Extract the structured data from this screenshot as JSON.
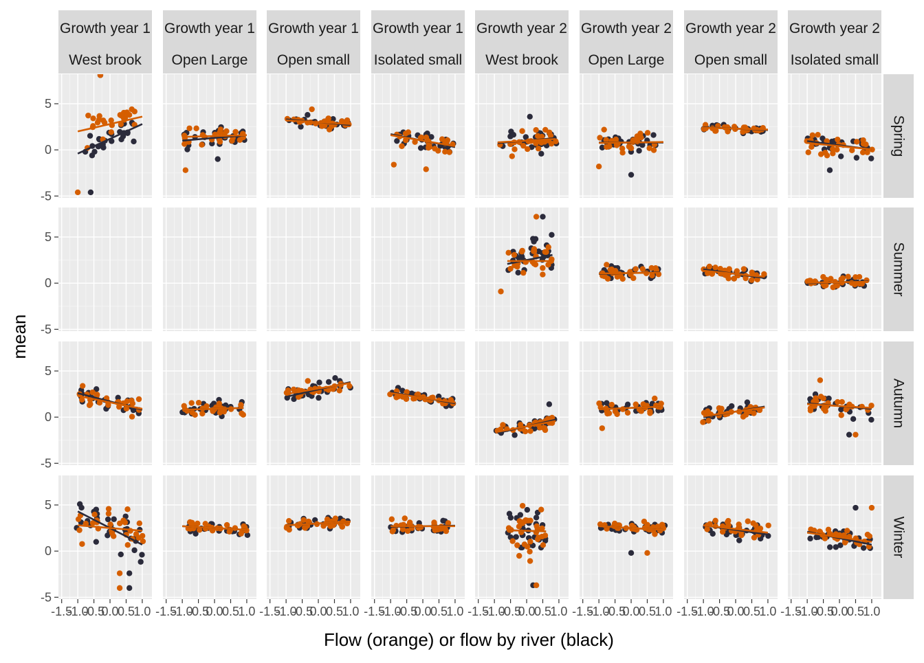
{
  "chart_data": {
    "type": "scatter",
    "xlabel": "Flow (orange) or flow by river (black)",
    "ylabel": "mean",
    "xlim": [
      -1.6,
      1.3
    ],
    "ylim": [
      -5.2,
      8.2
    ],
    "x_ticks": [
      -1.5,
      -1.0,
      -0.5,
      0.0,
      0.5,
      1.0
    ],
    "x_tick_labels": [
      "-1.5",
      "-1.0",
      "-0.5",
      "0.0",
      "0.5",
      "1.0"
    ],
    "y_ticks": [
      -5,
      0,
      5
    ],
    "y_tick_labels": [
      "-5",
      "0",
      "5"
    ],
    "grid": true,
    "facet_columns": [
      {
        "growth_year": "Growth year 1",
        "site": "West brook"
      },
      {
        "growth_year": "Growth year 1",
        "site": "Open Large"
      },
      {
        "growth_year": "Growth year 1",
        "site": "Open small"
      },
      {
        "growth_year": "Growth year 1",
        "site": "Isolated small"
      },
      {
        "growth_year": "Growth year 2",
        "site": "West brook"
      },
      {
        "growth_year": "Growth year 2",
        "site": "Open Large"
      },
      {
        "growth_year": "Growth year 2",
        "site": "Open small"
      },
      {
        "growth_year": "Growth year 2",
        "site": "Isolated small"
      }
    ],
    "facet_rows": [
      "Spring",
      "Summer",
      "Autumn",
      "Winter"
    ],
    "colors": {
      "flow": "#d55e00",
      "flow_by_river": "#2b2b3b"
    },
    "panels": [
      [
        {
          "c": [
            2.8,
            0.8
          ],
          "s": [
            1.2,
            1.6
          ],
          "xr": [
            -1.0,
            1.0
          ],
          "sd": 1.7,
          "n": 26,
          "ex": [
            [
              -0.6,
              -4.6,
              "b"
            ],
            [
              -1.0,
              -4.6,
              "o"
            ],
            [
              -0.3,
              8.1,
              "b"
            ],
            [
              -0.3,
              8.1,
              "o"
            ]
          ]
        },
        {
          "c": [
            1.5,
            0.1
          ],
          "s": [
            1.3,
            0.3
          ],
          "xr": [
            -1.0,
            1.0
          ],
          "sd": 0.9,
          "n": 26,
          "ex": [
            [
              -0.9,
              -2.2,
              "o"
            ],
            [
              0.1,
              -1.0,
              "b"
            ]
          ]
        },
        {
          "c": [
            3.0,
            -0.2
          ],
          "s": [
            3.0,
            -0.3
          ],
          "xr": [
            -1.0,
            1.0
          ],
          "sd": 0.6,
          "n": 26,
          "ex": [
            [
              -0.2,
              4.4,
              "o"
            ]
          ]
        },
        {
          "c": [
            1.0,
            -0.6
          ],
          "s": [
            1.0,
            -0.7
          ],
          "xr": [
            -1.0,
            1.0
          ],
          "sd": 0.8,
          "n": 26,
          "ex": [
            [
              -0.9,
              -1.6,
              "o"
            ],
            [
              0.1,
              -2.1,
              "o"
            ]
          ]
        },
        {
          "c": [
            1.0,
            0.2
          ],
          "s": [
            1.0,
            0.3
          ],
          "xr": [
            -0.9,
            0.9
          ],
          "sd": 1.0,
          "n": 26,
          "ex": [
            [
              0.1,
              3.6,
              "b"
            ]
          ]
        },
        {
          "c": [
            0.8,
            0.05
          ],
          "s": [
            0.8,
            0.0
          ],
          "xr": [
            -1.0,
            1.0
          ],
          "sd": 1.0,
          "n": 26,
          "ex": [
            [
              0.0,
              -2.7,
              "b"
            ],
            [
              -1.0,
              -1.8,
              "o"
            ]
          ]
        },
        {
          "c": [
            2.3,
            -0.1
          ],
          "s": [
            2.3,
            -0.15
          ],
          "xr": [
            -1.0,
            1.0
          ],
          "sd": 0.4,
          "n": 26,
          "ex": []
        },
        {
          "c": [
            0.4,
            -0.35
          ],
          "s": [
            0.5,
            -0.45
          ],
          "xr": [
            -1.0,
            1.0
          ],
          "sd": 1.0,
          "n": 26,
          "ex": [
            [
              -0.3,
              -2.2,
              "b"
            ]
          ]
        }
      ],
      [
        null,
        null,
        null,
        null,
        {
          "c": [
            2.4,
            0.0
          ],
          "s": [
            2.5,
            0.7
          ],
          "xr": [
            -0.6,
            0.8
          ],
          "sd": 1.9,
          "n": 28,
          "ex": [
            [
              0.3,
              7.2,
              "o"
            ],
            [
              0.5,
              7.2,
              "b"
            ],
            [
              -0.8,
              -0.9,
              "o"
            ]
          ]
        },
        {
          "c": [
            1.1,
            0.05
          ],
          "s": [
            1.1,
            0.1
          ],
          "xr": [
            -1.0,
            0.9
          ],
          "sd": 0.7,
          "n": 26,
          "ex": []
        },
        {
          "c": [
            1.0,
            -0.35
          ],
          "s": [
            1.0,
            -0.5
          ],
          "xr": [
            -1.0,
            0.9
          ],
          "sd": 0.6,
          "n": 26,
          "ex": []
        },
        {
          "c": [
            0.1,
            0.05
          ],
          "s": [
            0.1,
            0.1
          ],
          "xr": [
            -1.0,
            0.9
          ],
          "sd": 0.5,
          "n": 26,
          "ex": []
        }
      ],
      [
        {
          "c": [
            1.6,
            -0.7
          ],
          "s": [
            1.7,
            -0.9
          ],
          "xr": [
            -1.0,
            1.0
          ],
          "sd": 0.9,
          "n": 26,
          "ex": []
        },
        {
          "c": [
            0.9,
            0.1
          ],
          "s": [
            0.9,
            0.1
          ],
          "xr": [
            -1.0,
            0.9
          ],
          "sd": 0.6,
          "n": 24,
          "ex": []
        },
        {
          "c": [
            3.1,
            0.6
          ],
          "s": [
            3.0,
            0.8
          ],
          "xr": [
            -1.0,
            1.0
          ],
          "sd": 0.7,
          "n": 26,
          "ex": []
        },
        {
          "c": [
            2.1,
            -0.5
          ],
          "s": [
            2.1,
            -0.6
          ],
          "xr": [
            -1.0,
            1.0
          ],
          "sd": 0.5,
          "n": 26,
          "ex": []
        },
        {
          "c": [
            -1.0,
            0.65
          ],
          "s": [
            -1.0,
            0.8
          ],
          "xr": [
            -0.9,
            0.9
          ],
          "sd": 0.7,
          "n": 26,
          "ex": [
            [
              0.7,
              1.4,
              "b"
            ]
          ]
        },
        {
          "c": [
            1.0,
            0.15
          ],
          "s": [
            1.0,
            0.15
          ],
          "xr": [
            -1.0,
            0.9
          ],
          "sd": 0.7,
          "n": 24,
          "ex": [
            [
              -0.9,
              -1.2,
              "o"
            ]
          ]
        },
        {
          "c": [
            0.6,
            0.5
          ],
          "s": [
            0.6,
            0.6
          ],
          "xr": [
            -1.0,
            0.9
          ],
          "sd": 0.8,
          "n": 24,
          "ex": []
        },
        {
          "c": [
            1.2,
            -0.2
          ],
          "s": [
            1.2,
            -0.3
          ],
          "xr": [
            -1.0,
            1.0
          ],
          "sd": 1.0,
          "n": 24,
          "ex": [
            [
              -0.6,
              4.0,
              "o"
            ],
            [
              0.3,
              -1.9,
              "b"
            ],
            [
              0.5,
              -1.9,
              "o"
            ]
          ]
        }
      ],
      [
        {
          "c": [
            2.5,
            -0.3
          ],
          "s": [
            2.5,
            -1.8
          ],
          "xr": [
            -1.0,
            1.0
          ],
          "sd": 2.0,
          "n": 30,
          "ex": [
            [
              0.3,
              -2.4,
              "o"
            ],
            [
              0.6,
              -2.4,
              "b"
            ],
            [
              0.3,
              -4.0,
              "o"
            ],
            [
              0.6,
              -4.0,
              "b"
            ]
          ]
        },
        {
          "c": [
            2.5,
            -0.2
          ],
          "s": [
            2.5,
            -0.2
          ],
          "xr": [
            -1.0,
            1.0
          ],
          "sd": 0.6,
          "n": 28,
          "ex": []
        },
        {
          "c": [
            3.0,
            0.2
          ],
          "s": [
            3.0,
            0.2
          ],
          "xr": [
            -1.0,
            1.0
          ],
          "sd": 0.5,
          "n": 28,
          "ex": []
        },
        {
          "c": [
            2.7,
            0.0
          ],
          "s": [
            2.7,
            0.05
          ],
          "xr": [
            -1.0,
            1.0
          ],
          "sd": 0.7,
          "n": 28,
          "ex": []
        },
        {
          "c": [
            2.2,
            -0.1
          ],
          "s": [
            2.2,
            -0.1
          ],
          "xr": [
            -0.6,
            0.6
          ],
          "sd": 2.1,
          "n": 30,
          "ex": [
            [
              0.2,
              -3.7,
              "b"
            ],
            [
              0.3,
              -3.7,
              "o"
            ]
          ]
        },
        {
          "c": [
            2.5,
            -0.2
          ],
          "s": [
            2.5,
            -0.2
          ],
          "xr": [
            -1.0,
            1.0
          ],
          "sd": 0.6,
          "n": 28,
          "ex": [
            [
              0.0,
              -0.2,
              "b"
            ],
            [
              0.5,
              -0.2,
              "o"
            ]
          ]
        },
        {
          "c": [
            2.4,
            -0.4
          ],
          "s": [
            2.3,
            -0.5
          ],
          "xr": [
            -1.0,
            1.0
          ],
          "sd": 0.8,
          "n": 28,
          "ex": []
        },
        {
          "c": [
            1.5,
            -0.5
          ],
          "s": [
            1.4,
            -0.7
          ],
          "xr": [
            -1.0,
            1.0
          ],
          "sd": 1.0,
          "n": 28,
          "ex": [
            [
              0.5,
              4.7,
              "b"
            ],
            [
              1.0,
              4.7,
              "o"
            ]
          ]
        }
      ]
    ]
  }
}
